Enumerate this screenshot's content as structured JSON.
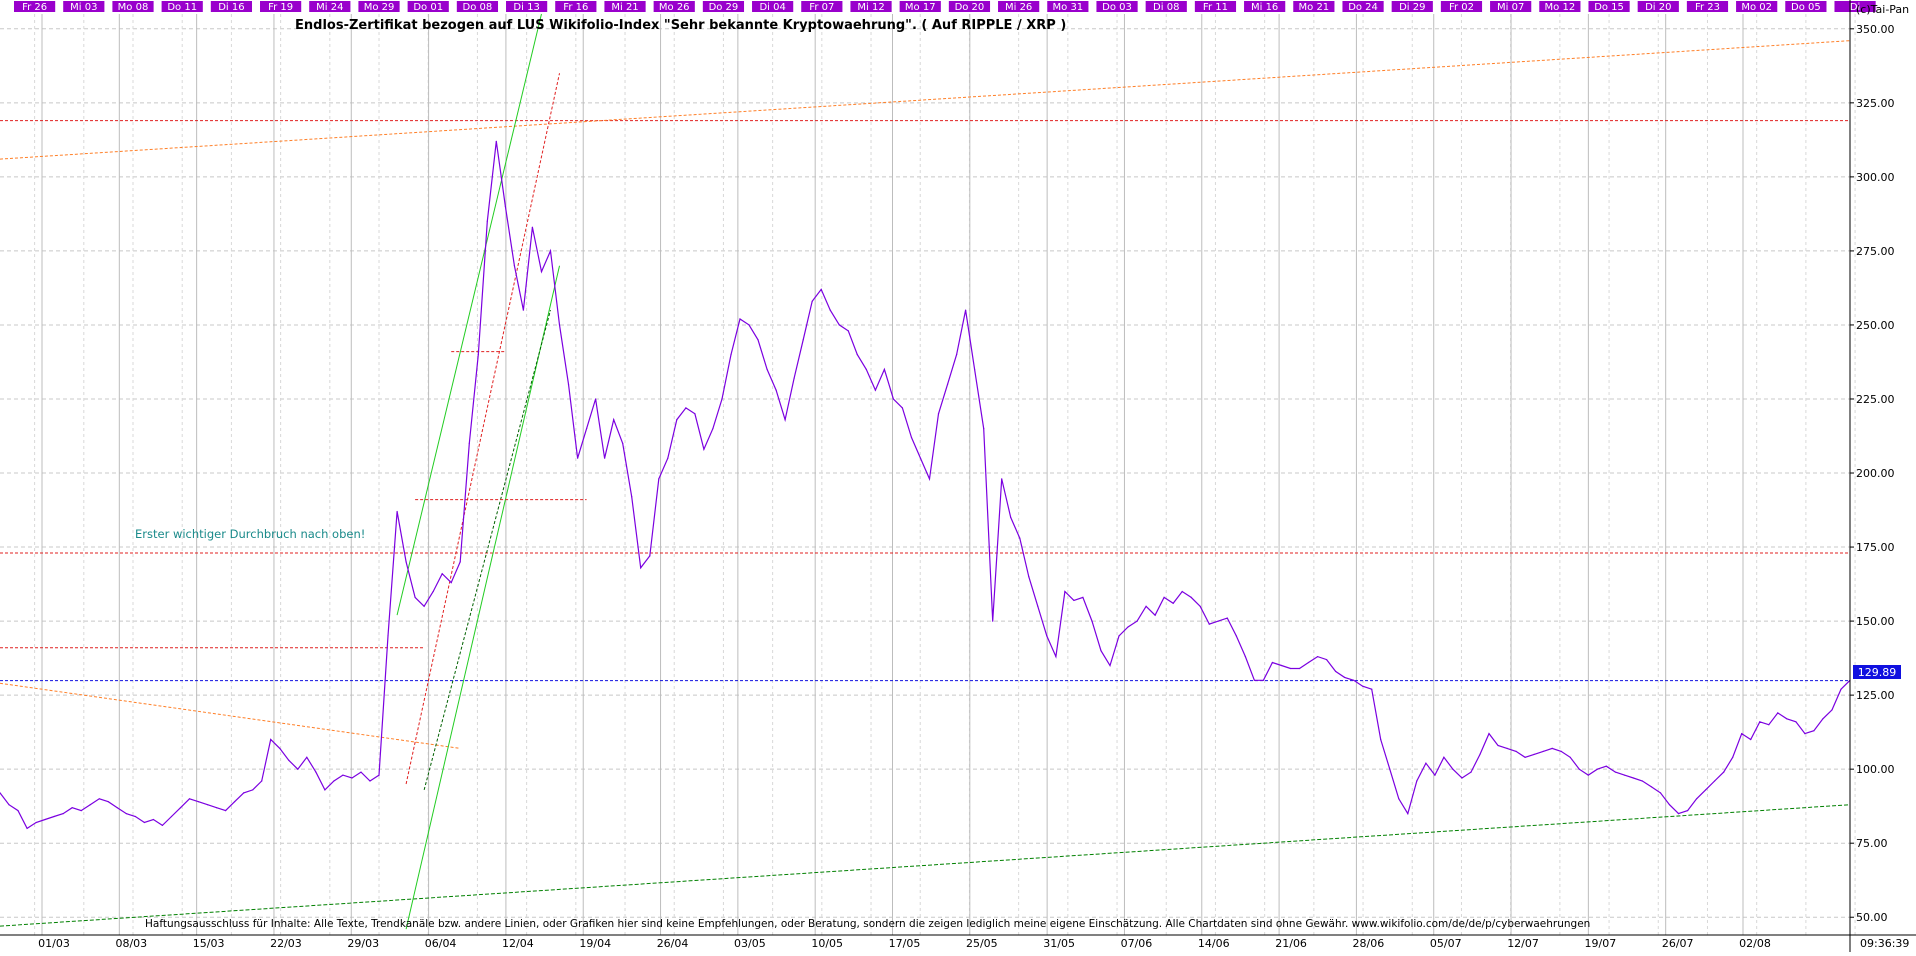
{
  "chart_data": {
    "type": "line",
    "title": "Endlos-Zertifikat bezogen auf LUS Wikifolio-Index \"Sehr bekannte Kryptowaehrung\". ( Auf RIPPLE / XRP )",
    "copyright": "(c)Tai-Pan",
    "disclaimer": "Haftungsausschluss für Inhalte: Alle Texte, Trendkanäle bzw. andere Linien, oder Grafiken hier sind keine Empfehlungen, oder Beratung, sondern die zeigen lediglich meine eigene Einschätzung. Alle Chartdaten sind ohne Gewähr.  www.wikifolio.com/de/de/p/cyberwaehrungen",
    "annotation": "Erster wichtiger Durchbruch nach oben!",
    "last_value_label": "129.89",
    "time_label": "09:36:39",
    "top_day_labels": [
      "Fr 26",
      "Mi 03",
      "Mo 08",
      "Do 11",
      "Di 16",
      "Fr 19",
      "Mi 24",
      "Mo 29",
      "Do 01",
      "Do 08",
      "Di 13",
      "Fr 16",
      "Mi 21",
      "Mo 26",
      "Do 29",
      "Di 04",
      "Fr 07",
      "Mi 12",
      "Mo 17",
      "Do 20",
      "Mi 26",
      "Mo 31",
      "Do 03",
      "Di 08",
      "Fr 11",
      "Mi 16",
      "Mo 21",
      "Do 24",
      "Di 29",
      "Fr 02",
      "Mi 07",
      "Mo 12",
      "Do 15",
      "Di 20",
      "Fr 23",
      "Mo 02",
      "Do 05",
      "Di"
    ],
    "x_tick_labels": [
      "01/03",
      "08/03",
      "15/03",
      "22/03",
      "29/03",
      "06/04",
      "12/04",
      "19/04",
      "26/04",
      "03/05",
      "10/05",
      "17/05",
      "25/05",
      "31/05",
      "07/06",
      "14/06",
      "21/06",
      "28/06",
      "05/07",
      "12/07",
      "19/07",
      "26/07",
      "02/08"
    ],
    "y_ticks": [
      50,
      75,
      100,
      125,
      150,
      175,
      200,
      225,
      250,
      275,
      300,
      325,
      350
    ],
    "y_tick_labels": [
      "50.00",
      "75.00",
      "100.00",
      "125.00",
      "150.00",
      "175.00",
      "200.00",
      "225.00",
      "250.00",
      "275.00",
      "300.00",
      "325.00",
      "350.00"
    ],
    "ylim": [
      44,
      355
    ],
    "horizontal_levels": [
      {
        "value": 319,
        "color": "#e02020"
      },
      {
        "value": 173,
        "color": "#e02020"
      },
      {
        "value": 129.89,
        "color": "#1010e0"
      }
    ],
    "series": [
      {
        "color": "#7b00e0",
        "points": [
          [
            0,
            92
          ],
          [
            1,
            88
          ],
          [
            2,
            86
          ],
          [
            3,
            80
          ],
          [
            4,
            82
          ],
          [
            5,
            83
          ],
          [
            6,
            84
          ],
          [
            7,
            85
          ],
          [
            8,
            87
          ],
          [
            9,
            86
          ],
          [
            10,
            88
          ],
          [
            11,
            90
          ],
          [
            12,
            89
          ],
          [
            13,
            87
          ],
          [
            14,
            85
          ],
          [
            15,
            84
          ],
          [
            16,
            82
          ],
          [
            17,
            83
          ],
          [
            18,
            81
          ],
          [
            19,
            84
          ],
          [
            20,
            87
          ],
          [
            21,
            90
          ],
          [
            22,
            89
          ],
          [
            23,
            88
          ],
          [
            24,
            87
          ],
          [
            25,
            86
          ],
          [
            26,
            89
          ],
          [
            27,
            92
          ],
          [
            28,
            93
          ],
          [
            29,
            96
          ],
          [
            30,
            110
          ],
          [
            31,
            107
          ],
          [
            32,
            103
          ],
          [
            33,
            100
          ],
          [
            34,
            104
          ],
          [
            35,
            99
          ],
          [
            36,
            93
          ],
          [
            37,
            96
          ],
          [
            38,
            98
          ],
          [
            39,
            97
          ],
          [
            40,
            99
          ],
          [
            41,
            96
          ],
          [
            42,
            98
          ],
          [
            43,
            145
          ],
          [
            44,
            187
          ],
          [
            45,
            170
          ],
          [
            46,
            158
          ],
          [
            47,
            155
          ],
          [
            48,
            160
          ],
          [
            49,
            166
          ],
          [
            50,
            163
          ],
          [
            51,
            170
          ],
          [
            52,
            210
          ],
          [
            53,
            240
          ],
          [
            54,
            285
          ],
          [
            55,
            312
          ],
          [
            56,
            290
          ],
          [
            57,
            270
          ],
          [
            58,
            255
          ],
          [
            59,
            283
          ],
          [
            60,
            268
          ],
          [
            61,
            275
          ],
          [
            62,
            250
          ],
          [
            63,
            230
          ],
          [
            64,
            205
          ],
          [
            65,
            215
          ],
          [
            66,
            225
          ],
          [
            67,
            205
          ],
          [
            68,
            218
          ],
          [
            69,
            210
          ],
          [
            70,
            192
          ],
          [
            71,
            168
          ],
          [
            72,
            172
          ],
          [
            73,
            198
          ],
          [
            74,
            205
          ],
          [
            75,
            218
          ],
          [
            76,
            222
          ],
          [
            77,
            220
          ],
          [
            78,
            208
          ],
          [
            79,
            215
          ],
          [
            80,
            225
          ],
          [
            81,
            240
          ],
          [
            82,
            252
          ],
          [
            83,
            250
          ],
          [
            84,
            245
          ],
          [
            85,
            235
          ],
          [
            86,
            228
          ],
          [
            87,
            218
          ],
          [
            88,
            232
          ],
          [
            89,
            245
          ],
          [
            90,
            258
          ],
          [
            91,
            262
          ],
          [
            92,
            255
          ],
          [
            93,
            250
          ],
          [
            94,
            248
          ],
          [
            95,
            240
          ],
          [
            96,
            235
          ],
          [
            97,
            228
          ],
          [
            98,
            235
          ],
          [
            99,
            225
          ],
          [
            100,
            222
          ],
          [
            101,
            212
          ],
          [
            102,
            205
          ],
          [
            103,
            198
          ],
          [
            104,
            220
          ],
          [
            105,
            230
          ],
          [
            106,
            240
          ],
          [
            107,
            255
          ],
          [
            108,
            235
          ],
          [
            109,
            215
          ],
          [
            110,
            150
          ],
          [
            111,
            198
          ],
          [
            112,
            185
          ],
          [
            113,
            178
          ],
          [
            114,
            165
          ],
          [
            115,
            155
          ],
          [
            116,
            145
          ],
          [
            117,
            138
          ],
          [
            118,
            160
          ],
          [
            119,
            157
          ],
          [
            120,
            158
          ],
          [
            121,
            150
          ],
          [
            122,
            140
          ],
          [
            123,
            135
          ],
          [
            124,
            145
          ],
          [
            125,
            148
          ],
          [
            126,
            150
          ],
          [
            127,
            155
          ],
          [
            128,
            152
          ],
          [
            129,
            158
          ],
          [
            130,
            156
          ],
          [
            131,
            160
          ],
          [
            132,
            158
          ],
          [
            133,
            155
          ],
          [
            134,
            149
          ],
          [
            135,
            150
          ],
          [
            136,
            151
          ],
          [
            137,
            145
          ],
          [
            138,
            138
          ],
          [
            139,
            130
          ],
          [
            140,
            130
          ],
          [
            141,
            136
          ],
          [
            142,
            135
          ],
          [
            143,
            134
          ],
          [
            144,
            134
          ],
          [
            145,
            136
          ],
          [
            146,
            138
          ],
          [
            147,
            137
          ],
          [
            148,
            133
          ],
          [
            149,
            131
          ],
          [
            150,
            130
          ],
          [
            151,
            128
          ],
          [
            152,
            127
          ],
          [
            153,
            110
          ],
          [
            154,
            100
          ],
          [
            155,
            90
          ],
          [
            156,
            85
          ],
          [
            157,
            96
          ],
          [
            158,
            102
          ],
          [
            159,
            98
          ],
          [
            160,
            104
          ],
          [
            161,
            100
          ],
          [
            162,
            97
          ],
          [
            163,
            99
          ],
          [
            164,
            105
          ],
          [
            165,
            112
          ],
          [
            166,
            108
          ],
          [
            167,
            107
          ],
          [
            168,
            106
          ],
          [
            169,
            104
          ],
          [
            170,
            105
          ],
          [
            171,
            106
          ],
          [
            172,
            107
          ],
          [
            173,
            106
          ],
          [
            174,
            104
          ],
          [
            175,
            100
          ],
          [
            176,
            98
          ],
          [
            177,
            100
          ],
          [
            178,
            101
          ],
          [
            179,
            99
          ],
          [
            180,
            98
          ],
          [
            181,
            97
          ],
          [
            182,
            96
          ],
          [
            183,
            94
          ],
          [
            184,
            92
          ],
          [
            185,
            88
          ],
          [
            186,
            85
          ],
          [
            187,
            86
          ],
          [
            188,
            90
          ],
          [
            189,
            93
          ],
          [
            190,
            96
          ],
          [
            191,
            99
          ],
          [
            192,
            104
          ],
          [
            193,
            112
          ],
          [
            194,
            110
          ],
          [
            195,
            116
          ],
          [
            196,
            115
          ],
          [
            197,
            119
          ],
          [
            198,
            117
          ],
          [
            199,
            116
          ],
          [
            200,
            112
          ],
          [
            201,
            113
          ],
          [
            202,
            117
          ],
          [
            203,
            120
          ],
          [
            204,
            127
          ],
          [
            205,
            130
          ]
        ]
      }
    ],
    "trend_lines": [
      {
        "from": [
          0,
          306
        ],
        "to": [
          205,
          346
        ],
        "color": "#ff7f27",
        "dash": "3,2"
      },
      {
        "from": [
          0,
          129
        ],
        "to": [
          51,
          107
        ],
        "color": "#ff7f27",
        "dash": "3,2"
      },
      {
        "from": [
          0,
          47
        ],
        "to": [
          205,
          88
        ],
        "color": "#008000",
        "dash": "4,2"
      },
      {
        "from": [
          44,
          152
        ],
        "to": [
          60,
          355
        ],
        "color": "#22cc22",
        "dash": ""
      },
      {
        "from": [
          45,
          46
        ],
        "to": [
          62,
          270
        ],
        "color": "#22cc22",
        "dash": ""
      },
      {
        "from": [
          47,
          93
        ],
        "to": [
          61,
          255
        ],
        "color": "#006000",
        "dash": "3,2"
      },
      {
        "from": [
          45,
          95
        ],
        "to": [
          62,
          335
        ],
        "color": "#e02020",
        "dash": "3,2"
      },
      {
        "from": [
          0,
          141
        ],
        "to": [
          47,
          141
        ],
        "color": "#e02020",
        "dash": "3,2"
      },
      {
        "from": [
          46,
          191
        ],
        "to": [
          65,
          191
        ],
        "color": "#e02020",
        "dash": "3,2"
      },
      {
        "from": [
          50,
          241
        ],
        "to": [
          56,
          241
        ],
        "color": "#e02020",
        "dash": "3,2"
      }
    ]
  }
}
